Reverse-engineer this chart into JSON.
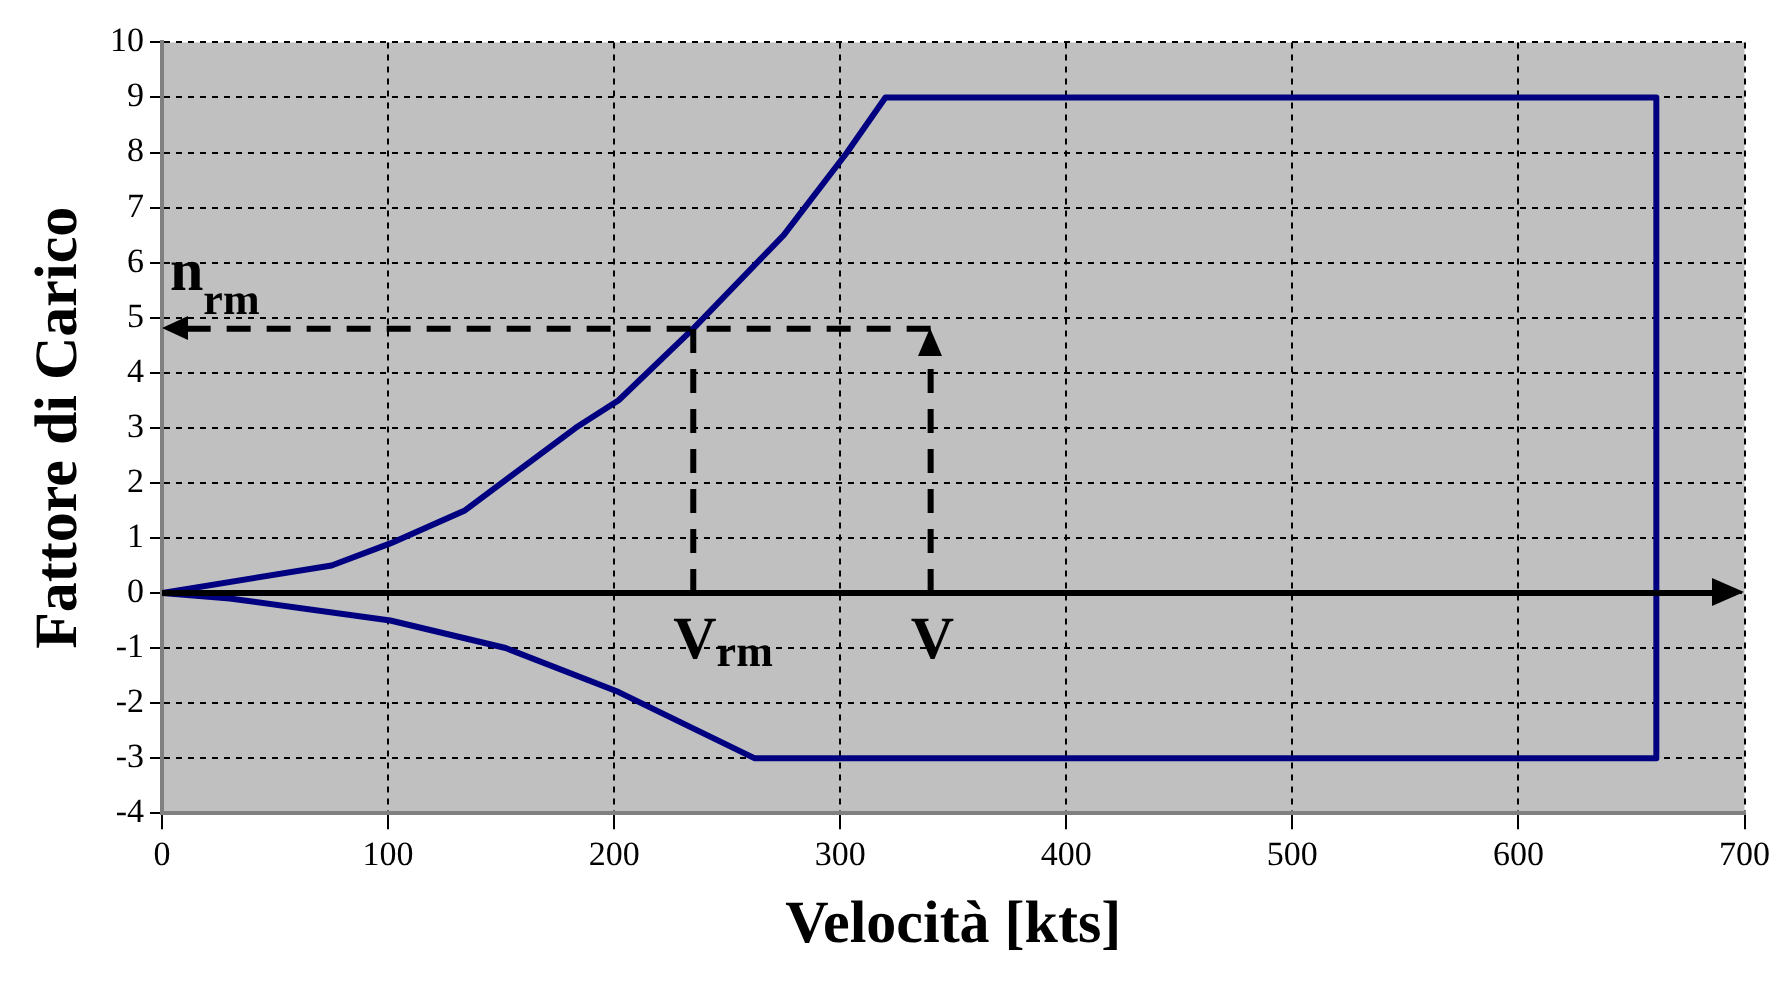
{
  "chart_data": {
    "type": "line",
    "xlabel": "Velocità [kts]",
    "ylabel": "Fattore di Carico",
    "series": [
      {
        "color": "#000080",
        "x": [
          0,
          75,
          101,
          134,
          183,
          202,
          235,
          275,
          303,
          320,
          661,
          661
        ],
        "values": [
          0,
          0.5,
          0.9,
          1.5,
          3,
          3.5,
          4.8,
          6.5,
          8,
          9,
          9,
          -3
        ]
      },
      {
        "color": "#000080",
        "x": [
          0,
          30,
          101,
          152,
          202,
          262,
          661
        ],
        "values": [
          0,
          -0.1,
          -0.5,
          -1,
          -1.8,
          -3,
          -3
        ]
      }
    ],
    "xlim": [
      0,
      700
    ],
    "xticks": [
      0,
      100,
      200,
      300,
      400,
      500,
      600,
      700
    ],
    "ylim": [
      -4,
      10
    ],
    "yticks": [
      -4,
      -3,
      -2,
      -1,
      0,
      1,
      2,
      3,
      4,
      5,
      6,
      7,
      8,
      9,
      10
    ],
    "grid": true,
    "marker": "none",
    "line_style": "solid",
    "legend": false,
    "ref_lines": [
      {
        "axis": "y",
        "value": 0,
        "color": "#000000",
        "line_style": "solid"
      },
      {
        "axis": "y",
        "value": 4.8,
        "label": "n$_{rm}$",
        "color": "#000000",
        "line_style": "dashed"
      },
      {
        "axis": "x",
        "value": 235,
        "label": "V$_{rm}$",
        "color": "#000000",
        "line_style": "dashed"
      },
      {
        "axis": "x",
        "value": 340,
        "label": "V",
        "color": "#000000",
        "line_style": "dashed"
      }
    ]
  }
}
